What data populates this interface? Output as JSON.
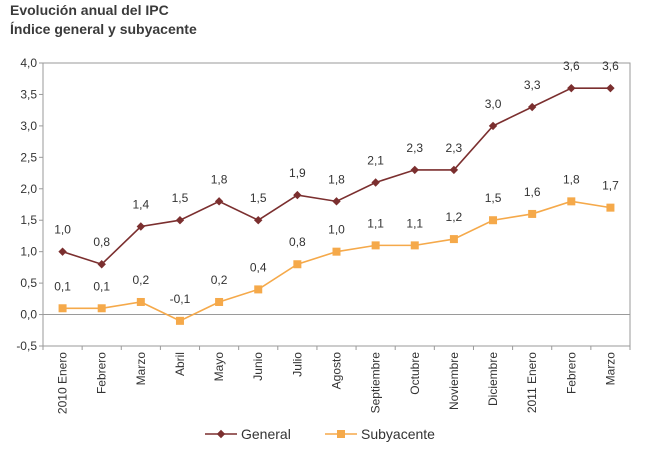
{
  "chart_data": {
    "type": "line",
    "title": "Evolución anual del IPC",
    "subtitle": "Índice general y subyacente",
    "categories": [
      "2010 Enero",
      "Febrero",
      "Marzo",
      "Abril",
      "Mayo",
      "Junio",
      "Julio",
      "Agosto",
      "Septiembre",
      "Octubre",
      "Noviembre",
      "Diciembre",
      "2011 Enero",
      "Febrero",
      "Marzo"
    ],
    "series": [
      {
        "name": "General",
        "color": "#7b2f2f",
        "marker": "diamond",
        "values": [
          1.0,
          0.8,
          1.4,
          1.5,
          1.8,
          1.5,
          1.9,
          1.8,
          2.1,
          2.3,
          2.3,
          3.0,
          3.3,
          3.6,
          3.6
        ],
        "labels": [
          "1,0",
          "0,8",
          "1,4",
          "1,5",
          "1,8",
          "1,5",
          "1,9",
          "1,8",
          "2,1",
          "2,3",
          "2,3",
          "3,0",
          "3,3",
          "3,6",
          "3,6"
        ]
      },
      {
        "name": "Subyacente",
        "color": "#f5a94a",
        "marker": "square",
        "values": [
          0.1,
          0.1,
          0.2,
          -0.1,
          0.2,
          0.4,
          0.8,
          1.0,
          1.1,
          1.1,
          1.2,
          1.5,
          1.6,
          1.8,
          1.7
        ],
        "labels": [
          "0,1",
          "0,1",
          "0,2",
          "-0,1",
          "0,2",
          "0,4",
          "0,8",
          "1,0",
          "1,1",
          "1,1",
          "1,2",
          "1,5",
          "1,6",
          "1,8",
          "1,7"
        ]
      }
    ],
    "ylim": [
      -0.5,
      4.0
    ],
    "yticks": [
      -0.5,
      0.0,
      0.5,
      1.0,
      1.5,
      2.0,
      2.5,
      3.0,
      3.5,
      4.0
    ],
    "ytick_labels": [
      "-0,5",
      "0,0",
      "0,5",
      "1,0",
      "1,5",
      "2,0",
      "2,5",
      "3,0",
      "3,5",
      "4,0"
    ],
    "xlabel": "",
    "ylabel": "",
    "grid": false,
    "legend_position": "bottom"
  }
}
